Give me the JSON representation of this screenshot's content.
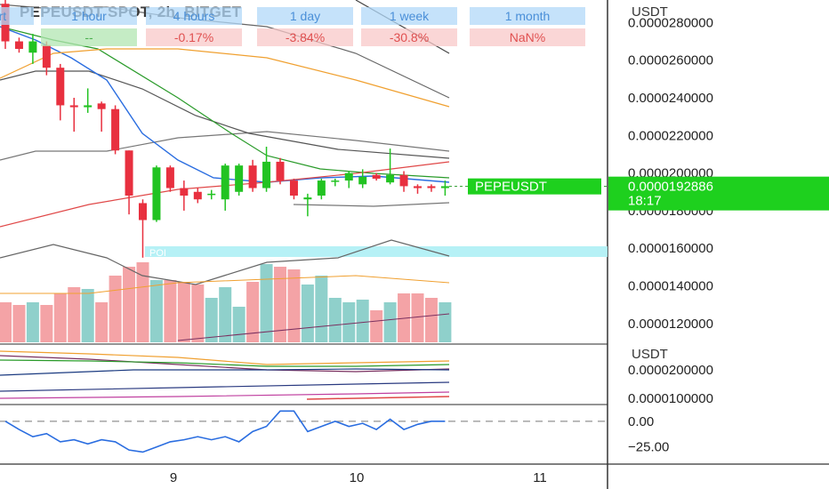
{
  "header": {
    "title": "PEPEUSDT SPOT, 2h, BITGET",
    "timeframes": [
      {
        "label": "art",
        "change": ""
      },
      {
        "label": "1 hour",
        "change": "--"
      },
      {
        "label": "4 hours",
        "change": "-0.17%"
      },
      {
        "label": "1 day",
        "change": "-3.84%"
      },
      {
        "label": "1 week",
        "change": "-30.8%"
      },
      {
        "label": "1 month",
        "change": "NaN%"
      }
    ]
  },
  "colors": {
    "up": "#22c322",
    "down": "#e8303f",
    "vol_up": "#8fd0cb",
    "vol_down": "#f4a3a6",
    "poi": "#aef0f5",
    "price_tag": "#1ed01e"
  },
  "chart_data": [
    {
      "type": "candlestick",
      "title": "PEPEUSDT SPOT, 2h, BITGET",
      "ylabel": "USDT",
      "ylim": [
        1.1e-07,
        2.92e-07
      ],
      "y_ticks": [
        "0.0000280000",
        "0.0000260000",
        "0.0000240000",
        "0.0000220000",
        "0.0000200000",
        "0.0000180000",
        "0.0000160000",
        "0.0000140000",
        "0.0000120000"
      ],
      "x_ticks": [
        "9",
        "10",
        "11"
      ],
      "last_price": {
        "symbol": "PEPEUSDT",
        "value": "0.0000192886",
        "countdown": "18:17"
      },
      "annotation": "POI",
      "candles": [
        {
          "o": 2.9e-07,
          "h": 2.92e-07,
          "l": 2.66e-07,
          "c": 2.7e-07
        },
        {
          "o": 2.7e-07,
          "h": 2.72e-07,
          "l": 2.64e-07,
          "c": 2.66e-07
        },
        {
          "o": 2.64e-07,
          "h": 2.74e-07,
          "l": 2.58e-07,
          "c": 2.7e-07
        },
        {
          "o": 2.68e-07,
          "h": 2.7e-07,
          "l": 2.52e-07,
          "c": 2.56e-07
        },
        {
          "o": 2.56e-07,
          "h": 2.58e-07,
          "l": 2.28e-07,
          "c": 2.36e-07
        },
        {
          "o": 2.36e-07,
          "h": 2.4e-07,
          "l": 2.22e-07,
          "c": 2.35e-07
        },
        {
          "o": 2.35e-07,
          "h": 2.45e-07,
          "l": 2.32e-07,
          "c": 2.36e-07
        },
        {
          "o": 2.37e-07,
          "h": 2.38e-07,
          "l": 2.22e-07,
          "c": 2.34e-07
        },
        {
          "o": 2.34e-07,
          "h": 2.36e-07,
          "l": 2.1e-07,
          "c": 2.12e-07
        },
        {
          "o": 2.12e-07,
          "h": 2.12e-07,
          "l": 1.78e-07,
          "c": 1.88e-07
        },
        {
          "o": 1.84e-07,
          "h": 1.86e-07,
          "l": 1.55e-07,
          "c": 1.75e-07
        },
        {
          "o": 1.75e-07,
          "h": 2.04e-07,
          "l": 1.74e-07,
          "c": 2.03e-07
        },
        {
          "o": 2.03e-07,
          "h": 2.04e-07,
          "l": 1.9e-07,
          "c": 1.92e-07
        },
        {
          "o": 1.92e-07,
          "h": 1.96e-07,
          "l": 1.8e-07,
          "c": 1.88e-07
        },
        {
          "o": 1.9e-07,
          "h": 1.92e-07,
          "l": 1.84e-07,
          "c": 1.86e-07
        },
        {
          "o": 1.89e-07,
          "h": 1.91e-07,
          "l": 1.86e-07,
          "c": 1.89e-07
        },
        {
          "o": 1.86e-07,
          "h": 2.05e-07,
          "l": 1.8e-07,
          "c": 2.04e-07
        },
        {
          "o": 1.9e-07,
          "h": 2.05e-07,
          "l": 1.88e-07,
          "c": 2.04e-07
        },
        {
          "o": 2.04e-07,
          "h": 2.07e-07,
          "l": 1.9e-07,
          "c": 1.92e-07
        },
        {
          "o": 1.92e-07,
          "h": 2.14e-07,
          "l": 1.9e-07,
          "c": 2.06e-07
        },
        {
          "o": 2.06e-07,
          "h": 2.08e-07,
          "l": 1.94e-07,
          "c": 1.96e-07
        },
        {
          "o": 1.96e-07,
          "h": 1.97e-07,
          "l": 1.86e-07,
          "c": 1.88e-07
        },
        {
          "o": 1.86e-07,
          "h": 1.89e-07,
          "l": 1.77e-07,
          "c": 1.87e-07
        },
        {
          "o": 1.88e-07,
          "h": 1.97e-07,
          "l": 1.86e-07,
          "c": 1.96e-07
        },
        {
          "o": 1.96e-07,
          "h": 1.97e-07,
          "l": 1.93e-07,
          "c": 1.96e-07
        },
        {
          "o": 1.96e-07,
          "h": 2.01e-07,
          "l": 1.92e-07,
          "c": 2e-07
        },
        {
          "o": 1.94e-07,
          "h": 2.02e-07,
          "l": 1.92e-07,
          "c": 1.98e-07
        },
        {
          "o": 1.99e-07,
          "h": 2e-07,
          "l": 1.96e-07,
          "c": 1.97e-07
        },
        {
          "o": 1.95e-07,
          "h": 2.13e-07,
          "l": 1.94e-07,
          "c": 1.99e-07
        },
        {
          "o": 1.99e-07,
          "h": 2.01e-07,
          "l": 1.9e-07,
          "c": 1.93e-07
        },
        {
          "o": 1.93e-07,
          "h": 1.94e-07,
          "l": 1.89e-07,
          "c": 1.92e-07
        },
        {
          "o": 1.93e-07,
          "h": 1.94e-07,
          "l": 1.9e-07,
          "c": 1.92e-07
        },
        {
          "o": 1.92e-07,
          "h": 1.96e-07,
          "l": 1.88e-07,
          "c": 1.93e-07
        }
      ]
    },
    {
      "type": "line",
      "ylabel": "USDT",
      "y_ticks": [
        "0.0000200000",
        "0.0000100000"
      ]
    },
    {
      "type": "line",
      "y_ticks": [
        "0.00",
        "−25.00"
      ],
      "ylim": [
        -40,
        12
      ],
      "values": [
        0,
        -8,
        -15,
        -12,
        -20,
        -18,
        -22,
        -18,
        -20,
        -28,
        -30,
        -25,
        -20,
        -18,
        -15,
        -18,
        -15,
        -20,
        -10,
        -5,
        10,
        10,
        -10,
        -5,
        0,
        -5,
        -2,
        -8,
        2,
        -8,
        -3,
        0,
        0
      ]
    }
  ]
}
